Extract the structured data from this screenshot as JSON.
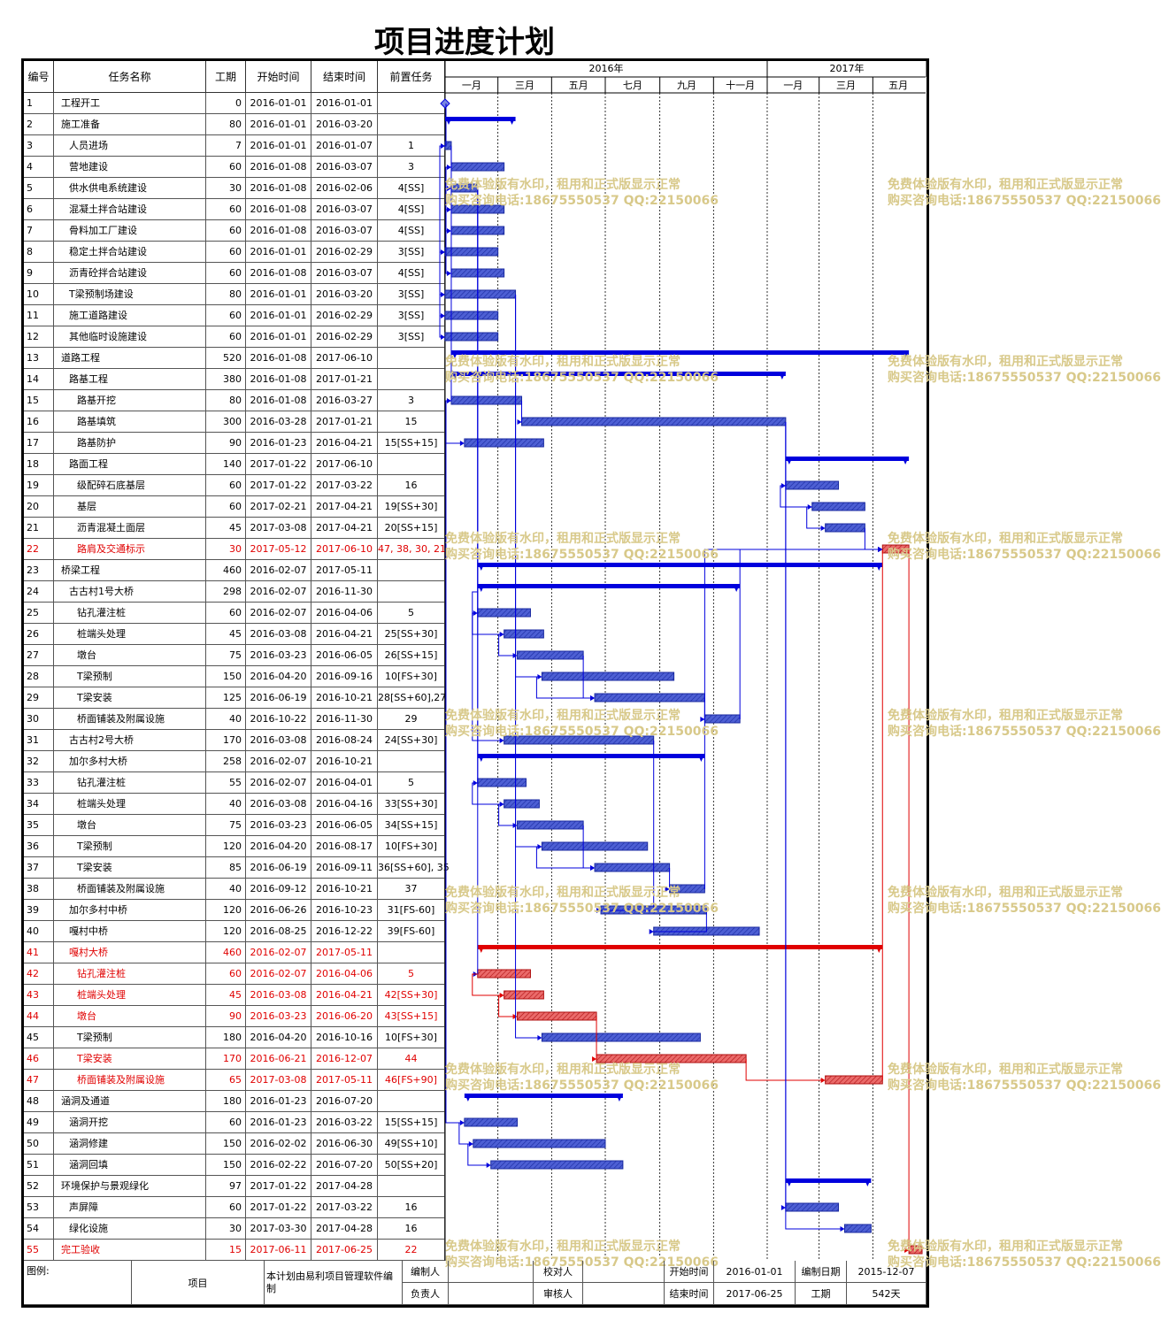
{
  "title": "项目进度计划",
  "columns": [
    "编号",
    "任务名称",
    "工期",
    "开始时间",
    "结束时间",
    "前置任务"
  ],
  "timescale": {
    "years": [
      "2016年",
      "2017年"
    ],
    "months": [
      "一月",
      "三月",
      "五月",
      "七月",
      "九月",
      "十一月",
      "一月",
      "三月",
      "五月"
    ]
  },
  "tasks": [
    {
      "id": "1",
      "name": "工程开工",
      "level": 0,
      "dur": "0",
      "start": "2016-01-01",
      "end": "2016-01-01",
      "pred": "",
      "type": "milestone",
      "critical": false
    },
    {
      "id": "2",
      "name": "施工准备",
      "level": 0,
      "dur": "80",
      "start": "2016-01-01",
      "end": "2016-03-20",
      "pred": "",
      "type": "summary",
      "critical": false
    },
    {
      "id": "3",
      "name": "人员进场",
      "level": 1,
      "dur": "7",
      "start": "2016-01-01",
      "end": "2016-01-07",
      "pred": "1",
      "type": "task",
      "critical": false
    },
    {
      "id": "4",
      "name": "营地建设",
      "level": 1,
      "dur": "60",
      "start": "2016-01-08",
      "end": "2016-03-07",
      "pred": "3",
      "type": "task",
      "critical": false
    },
    {
      "id": "5",
      "name": "供水供电系统建设",
      "level": 1,
      "dur": "30",
      "start": "2016-01-08",
      "end": "2016-02-06",
      "pred": "4[SS]",
      "type": "task",
      "critical": false
    },
    {
      "id": "6",
      "name": "混凝土拌合站建设",
      "level": 1,
      "dur": "60",
      "start": "2016-01-08",
      "end": "2016-03-07",
      "pred": "4[SS]",
      "type": "task",
      "critical": false
    },
    {
      "id": "7",
      "name": "骨料加工厂建设",
      "level": 1,
      "dur": "60",
      "start": "2016-01-08",
      "end": "2016-03-07",
      "pred": "4[SS]",
      "type": "task",
      "critical": false
    },
    {
      "id": "8",
      "name": "稳定土拌合站建设",
      "level": 1,
      "dur": "60",
      "start": "2016-01-01",
      "end": "2016-02-29",
      "pred": "3[SS]",
      "type": "task",
      "critical": false
    },
    {
      "id": "9",
      "name": "沥青砼拌合站建设",
      "level": 1,
      "dur": "60",
      "start": "2016-01-08",
      "end": "2016-03-07",
      "pred": "4[SS]",
      "type": "task",
      "critical": false
    },
    {
      "id": "10",
      "name": "T梁预制场建设",
      "level": 1,
      "dur": "80",
      "start": "2016-01-01",
      "end": "2016-03-20",
      "pred": "3[SS]",
      "type": "task",
      "critical": false
    },
    {
      "id": "11",
      "name": "施工道路建设",
      "level": 1,
      "dur": "60",
      "start": "2016-01-01",
      "end": "2016-02-29",
      "pred": "3[SS]",
      "type": "task",
      "critical": false
    },
    {
      "id": "12",
      "name": "其他临时设施建设",
      "level": 1,
      "dur": "60",
      "start": "2016-01-01",
      "end": "2016-02-29",
      "pred": "3[SS]",
      "type": "task",
      "critical": false
    },
    {
      "id": "13",
      "name": "道路工程",
      "level": 0,
      "dur": "520",
      "start": "2016-01-08",
      "end": "2017-06-10",
      "pred": "",
      "type": "summary",
      "critical": false
    },
    {
      "id": "14",
      "name": "路基工程",
      "level": 1,
      "dur": "380",
      "start": "2016-01-08",
      "end": "2017-01-21",
      "pred": "",
      "type": "summary",
      "critical": false
    },
    {
      "id": "15",
      "name": "路基开挖",
      "level": 2,
      "dur": "80",
      "start": "2016-01-08",
      "end": "2016-03-27",
      "pred": "3",
      "type": "task",
      "critical": false
    },
    {
      "id": "16",
      "name": "路基填筑",
      "level": 2,
      "dur": "300",
      "start": "2016-03-28",
      "end": "2017-01-21",
      "pred": "15",
      "type": "task",
      "critical": false
    },
    {
      "id": "17",
      "name": "路基防护",
      "level": 2,
      "dur": "90",
      "start": "2016-01-23",
      "end": "2016-04-21",
      "pred": "15[SS+15]",
      "type": "task",
      "critical": false
    },
    {
      "id": "18",
      "name": "路面工程",
      "level": 1,
      "dur": "140",
      "start": "2017-01-22",
      "end": "2017-06-10",
      "pred": "",
      "type": "summary",
      "critical": false
    },
    {
      "id": "19",
      "name": "级配碎石底基层",
      "level": 2,
      "dur": "60",
      "start": "2017-01-22",
      "end": "2017-03-22",
      "pred": "16",
      "type": "task",
      "critical": false
    },
    {
      "id": "20",
      "name": "基层",
      "level": 2,
      "dur": "60",
      "start": "2017-02-21",
      "end": "2017-04-21",
      "pred": "19[SS+30]",
      "type": "task",
      "critical": false
    },
    {
      "id": "21",
      "name": "沥青混凝土面层",
      "level": 2,
      "dur": "45",
      "start": "2017-03-08",
      "end": "2017-04-21",
      "pred": "20[SS+15]",
      "type": "task",
      "critical": false
    },
    {
      "id": "22",
      "name": "路肩及交通标示",
      "level": 2,
      "dur": "30",
      "start": "2017-05-12",
      "end": "2017-06-10",
      "pred": "47, 38, 30, 21",
      "type": "task",
      "critical": true
    },
    {
      "id": "23",
      "name": "桥梁工程",
      "level": 0,
      "dur": "460",
      "start": "2016-02-07",
      "end": "2017-05-11",
      "pred": "",
      "type": "summary",
      "critical": false
    },
    {
      "id": "24",
      "name": "古古村1号大桥",
      "level": 1,
      "dur": "298",
      "start": "2016-02-07",
      "end": "2016-11-30",
      "pred": "",
      "type": "summary",
      "critical": false
    },
    {
      "id": "25",
      "name": "钻孔灌注桩",
      "level": 2,
      "dur": "60",
      "start": "2016-02-07",
      "end": "2016-04-06",
      "pred": "5",
      "type": "task",
      "critical": false
    },
    {
      "id": "26",
      "name": "桩端头处理",
      "level": 2,
      "dur": "45",
      "start": "2016-03-08",
      "end": "2016-04-21",
      "pred": "25[SS+30]",
      "type": "task",
      "critical": false
    },
    {
      "id": "27",
      "name": "墩台",
      "level": 2,
      "dur": "75",
      "start": "2016-03-23",
      "end": "2016-06-05",
      "pred": "26[SS+15]",
      "type": "task",
      "critical": false
    },
    {
      "id": "28",
      "name": "T梁预制",
      "level": 2,
      "dur": "150",
      "start": "2016-04-20",
      "end": "2016-09-16",
      "pred": "10[FS+30]",
      "type": "task",
      "critical": false
    },
    {
      "id": "29",
      "name": "T梁安装",
      "level": 2,
      "dur": "125",
      "start": "2016-06-19",
      "end": "2016-10-21",
      "pred": "28[SS+60],27",
      "type": "task",
      "critical": false
    },
    {
      "id": "30",
      "name": "桥面铺装及附属设施",
      "level": 2,
      "dur": "40",
      "start": "2016-10-22",
      "end": "2016-11-30",
      "pred": "29",
      "type": "task",
      "critical": false
    },
    {
      "id": "31",
      "name": "古古村2号大桥",
      "level": 1,
      "dur": "170",
      "start": "2016-03-08",
      "end": "2016-08-24",
      "pred": "24[SS+30]",
      "type": "task",
      "critical": false
    },
    {
      "id": "32",
      "name": "加尔多村大桥",
      "level": 1,
      "dur": "258",
      "start": "2016-02-07",
      "end": "2016-10-21",
      "pred": "",
      "type": "summary",
      "critical": false
    },
    {
      "id": "33",
      "name": "钻孔灌注桩",
      "level": 2,
      "dur": "55",
      "start": "2016-02-07",
      "end": "2016-04-01",
      "pred": "5",
      "type": "task",
      "critical": false
    },
    {
      "id": "34",
      "name": "桩端头处理",
      "level": 2,
      "dur": "40",
      "start": "2016-03-08",
      "end": "2016-04-16",
      "pred": "33[SS+30]",
      "type": "task",
      "critical": false
    },
    {
      "id": "35",
      "name": "墩台",
      "level": 2,
      "dur": "75",
      "start": "2016-03-23",
      "end": "2016-06-05",
      "pred": "34[SS+15]",
      "type": "task",
      "critical": false
    },
    {
      "id": "36",
      "name": "T梁预制",
      "level": 2,
      "dur": "120",
      "start": "2016-04-20",
      "end": "2016-08-17",
      "pred": "10[FS+30]",
      "type": "task",
      "critical": false
    },
    {
      "id": "37",
      "name": "T梁安装",
      "level": 2,
      "dur": "85",
      "start": "2016-06-19",
      "end": "2016-09-11",
      "pred": "36[SS+60], 35",
      "type": "task",
      "critical": false
    },
    {
      "id": "38",
      "name": "桥面铺装及附属设施",
      "level": 2,
      "dur": "40",
      "start": "2016-09-12",
      "end": "2016-10-21",
      "pred": "37",
      "type": "task",
      "critical": false
    },
    {
      "id": "39",
      "name": "加尔多村中桥",
      "level": 1,
      "dur": "120",
      "start": "2016-06-26",
      "end": "2016-10-23",
      "pred": "31[FS-60]",
      "type": "task",
      "critical": false
    },
    {
      "id": "40",
      "name": "嘎村中桥",
      "level": 1,
      "dur": "120",
      "start": "2016-08-25",
      "end": "2016-12-22",
      "pred": "39[FS-60]",
      "type": "task",
      "critical": false
    },
    {
      "id": "41",
      "name": "嘎村大桥",
      "level": 1,
      "dur": "460",
      "start": "2016-02-07",
      "end": "2017-05-11",
      "pred": "",
      "type": "summary",
      "critical": true
    },
    {
      "id": "42",
      "name": "钻孔灌注桩",
      "level": 2,
      "dur": "60",
      "start": "2016-02-07",
      "end": "2016-04-06",
      "pred": "5",
      "type": "task",
      "critical": true
    },
    {
      "id": "43",
      "name": "桩端头处理",
      "level": 2,
      "dur": "45",
      "start": "2016-03-08",
      "end": "2016-04-21",
      "pred": "42[SS+30]",
      "type": "task",
      "critical": true
    },
    {
      "id": "44",
      "name": "墩台",
      "level": 2,
      "dur": "90",
      "start": "2016-03-23",
      "end": "2016-06-20",
      "pred": "43[SS+15]",
      "type": "task",
      "critical": true
    },
    {
      "id": "45",
      "name": "T梁预制",
      "level": 2,
      "dur": "180",
      "start": "2016-04-20",
      "end": "2016-10-16",
      "pred": "10[FS+30]",
      "type": "task",
      "critical": false
    },
    {
      "id": "46",
      "name": "T梁安装",
      "level": 2,
      "dur": "170",
      "start": "2016-06-21",
      "end": "2016-12-07",
      "pred": "44",
      "type": "task",
      "critical": true
    },
    {
      "id": "47",
      "name": "桥面铺装及附属设施",
      "level": 2,
      "dur": "65",
      "start": "2017-03-08",
      "end": "2017-05-11",
      "pred": "46[FS+90]",
      "type": "task",
      "critical": true
    },
    {
      "id": "48",
      "name": "涵洞及通道",
      "level": 0,
      "dur": "180",
      "start": "2016-01-23",
      "end": "2016-07-20",
      "pred": "",
      "type": "summary",
      "critical": false
    },
    {
      "id": "49",
      "name": "涵洞开挖",
      "level": 1,
      "dur": "60",
      "start": "2016-01-23",
      "end": "2016-03-22",
      "pred": "15[SS+15]",
      "type": "task",
      "critical": false
    },
    {
      "id": "50",
      "name": "涵洞修建",
      "level": 1,
      "dur": "150",
      "start": "2016-02-02",
      "end": "2016-06-30",
      "pred": "49[SS+10]",
      "type": "task",
      "critical": false
    },
    {
      "id": "51",
      "name": "涵洞回填",
      "level": 1,
      "dur": "150",
      "start": "2016-02-22",
      "end": "2016-07-20",
      "pred": "50[SS+20]",
      "type": "task",
      "critical": false
    },
    {
      "id": "52",
      "name": "环境保护与景观绿化",
      "level": 0,
      "dur": "97",
      "start": "2017-01-22",
      "end": "2017-04-28",
      "pred": "",
      "type": "summary",
      "critical": false
    },
    {
      "id": "53",
      "name": "声屏障",
      "level": 1,
      "dur": "60",
      "start": "2017-01-22",
      "end": "2017-03-22",
      "pred": "16",
      "type": "task",
      "critical": false
    },
    {
      "id": "54",
      "name": "绿化设施",
      "level": 1,
      "dur": "30",
      "start": "2017-03-30",
      "end": "2017-04-28",
      "pred": "16",
      "type": "task",
      "critical": false
    },
    {
      "id": "55",
      "name": "完工验收",
      "level": 0,
      "dur": "15",
      "start": "2017-06-11",
      "end": "2017-06-25",
      "pred": "22",
      "type": "task",
      "critical": true
    }
  ],
  "watermark": {
    "line1": "免费体验版有水印，租用和正式版显示正常",
    "line2": "购买咨询电话:18675550537 QQ:22150066"
  },
  "footer": {
    "legend_label": "图例:",
    "item_label": "项目",
    "software_note": "本计划由易利项目管理软件编制",
    "editor_label": "编制人",
    "checker_label": "校对人",
    "responsible_label": "负责人",
    "reviewer_label": "审核人",
    "start_label": "开始时间",
    "start_value": "2016-01-01",
    "date_label": "编制日期",
    "date_value": "2015-12-07",
    "end_label": "结束时间",
    "end_value": "2017-06-25",
    "duration_label": "工期",
    "duration_value": "542天"
  },
  "colors": {
    "normal": "#0000cc",
    "critical": "#e00000",
    "bar_fill": "#3d4fc8",
    "critical_fill": "#e05050"
  },
  "chart_data": {
    "type": "gantt",
    "x_range": [
      "2016-01-01",
      "2017-06-30"
    ],
    "series": [
      {
        "name": "",
        "values": "tasks"
      }
    ]
  }
}
